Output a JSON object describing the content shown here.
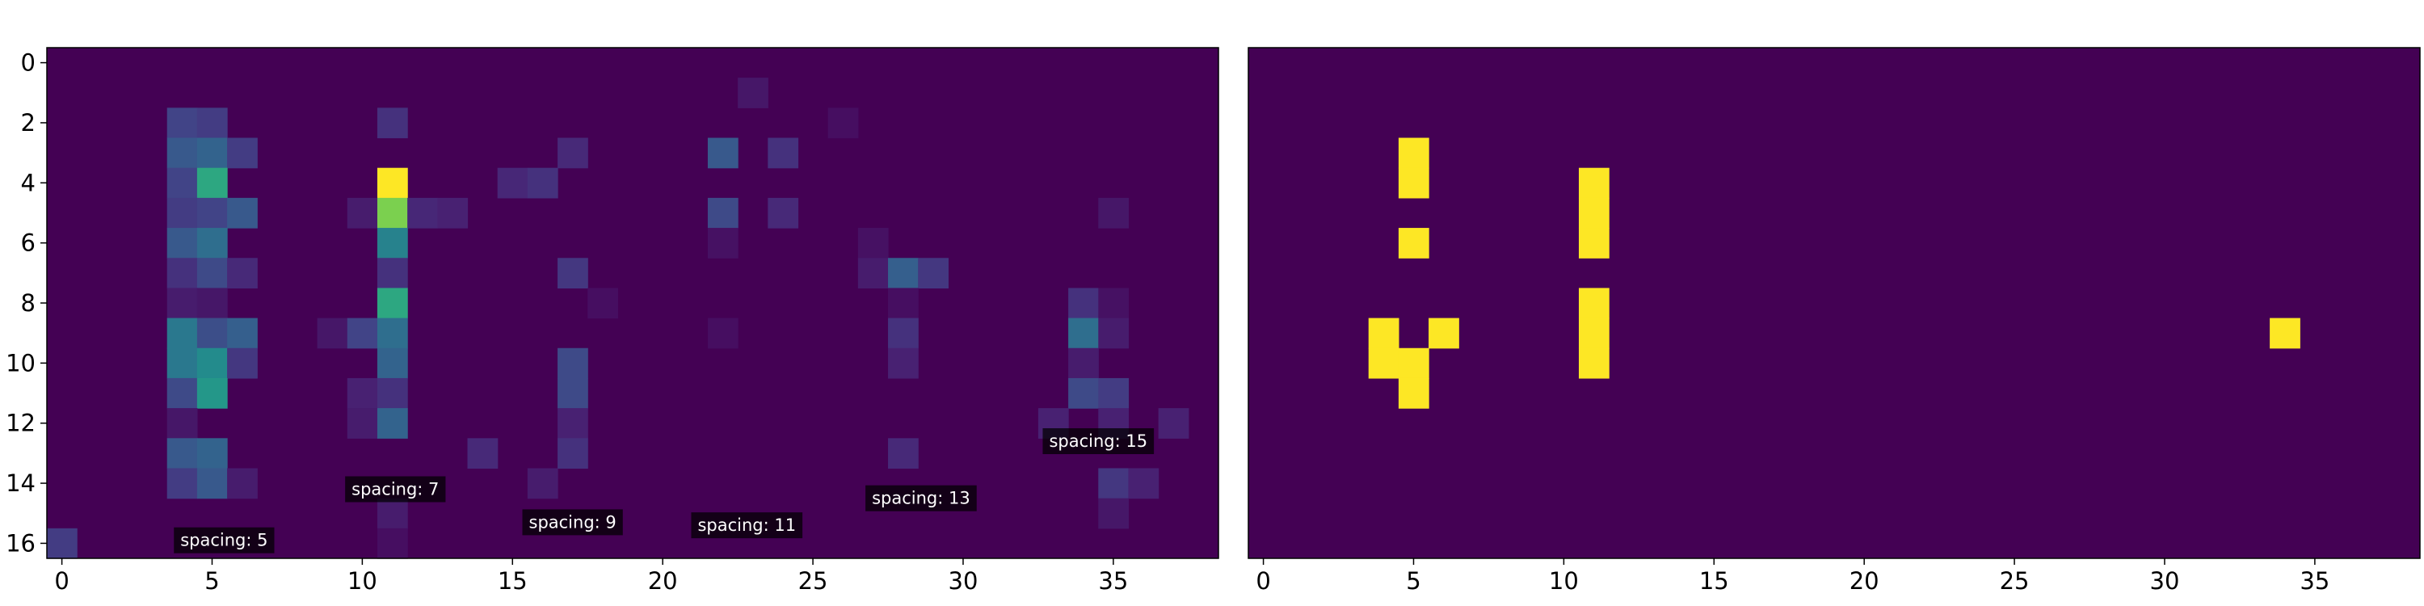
{
  "chart_data": [
    {
      "type": "heatmap",
      "panel": "left",
      "rows": 17,
      "cols": 39,
      "vmin": 0,
      "vmax": 1,
      "colormap": "viridis",
      "x_ticks": [
        0,
        5,
        10,
        15,
        20,
        25,
        30,
        35
      ],
      "y_ticks": [
        0,
        2,
        4,
        6,
        8,
        10,
        12,
        14,
        16
      ],
      "cells": [
        [
          1,
          23,
          0.08
        ],
        [
          2,
          4,
          0.25
        ],
        [
          2,
          5,
          0.22
        ],
        [
          2,
          11,
          0.18
        ],
        [
          2,
          26,
          0.05
        ],
        [
          3,
          4,
          0.35
        ],
        [
          3,
          5,
          0.4
        ],
        [
          3,
          6,
          0.22
        ],
        [
          3,
          17,
          0.15
        ],
        [
          3,
          22,
          0.35
        ],
        [
          3,
          24,
          0.18
        ],
        [
          4,
          4,
          0.25
        ],
        [
          4,
          5,
          0.7
        ],
        [
          4,
          11,
          1.0
        ],
        [
          4,
          15,
          0.14
        ],
        [
          4,
          16,
          0.18
        ],
        [
          5,
          4,
          0.22
        ],
        [
          5,
          5,
          0.25
        ],
        [
          5,
          6,
          0.35
        ],
        [
          5,
          10,
          0.1
        ],
        [
          5,
          11,
          0.85
        ],
        [
          5,
          12,
          0.14
        ],
        [
          5,
          13,
          0.12
        ],
        [
          5,
          22,
          0.28
        ],
        [
          5,
          24,
          0.15
        ],
        [
          5,
          35,
          0.08
        ],
        [
          6,
          4,
          0.35
        ],
        [
          6,
          5,
          0.45
        ],
        [
          6,
          11,
          0.55
        ],
        [
          6,
          22,
          0.06
        ],
        [
          6,
          27,
          0.06
        ],
        [
          7,
          4,
          0.18
        ],
        [
          7,
          5,
          0.28
        ],
        [
          7,
          6,
          0.15
        ],
        [
          7,
          11,
          0.18
        ],
        [
          7,
          17,
          0.2
        ],
        [
          7,
          27,
          0.1
        ],
        [
          7,
          28,
          0.38
        ],
        [
          7,
          29,
          0.2
        ],
        [
          8,
          4,
          0.1
        ],
        [
          8,
          5,
          0.08
        ],
        [
          8,
          11,
          0.7
        ],
        [
          8,
          18,
          0.05
        ],
        [
          8,
          28,
          0.05
        ],
        [
          8,
          34,
          0.18
        ],
        [
          8,
          35,
          0.06
        ],
        [
          9,
          4,
          0.5
        ],
        [
          9,
          5,
          0.3
        ],
        [
          9,
          6,
          0.38
        ],
        [
          9,
          9,
          0.08
        ],
        [
          9,
          10,
          0.25
        ],
        [
          9,
          11,
          0.45
        ],
        [
          9,
          22,
          0.05
        ],
        [
          9,
          28,
          0.18
        ],
        [
          9,
          34,
          0.45
        ],
        [
          9,
          35,
          0.1
        ],
        [
          10,
          4,
          0.5
        ],
        [
          10,
          5,
          0.6
        ],
        [
          10,
          6,
          0.2
        ],
        [
          10,
          11,
          0.4
        ],
        [
          10,
          17,
          0.28
        ],
        [
          10,
          28,
          0.12
        ],
        [
          10,
          34,
          0.1
        ],
        [
          11,
          4,
          0.28
        ],
        [
          11,
          5,
          0.65
        ],
        [
          11,
          10,
          0.12
        ],
        [
          11,
          11,
          0.18
        ],
        [
          11,
          17,
          0.28
        ],
        [
          11,
          34,
          0.28
        ],
        [
          11,
          35,
          0.22
        ],
        [
          12,
          4,
          0.08
        ],
        [
          12,
          10,
          0.1
        ],
        [
          12,
          11,
          0.4
        ],
        [
          12,
          17,
          0.12
        ],
        [
          12,
          33,
          0.12
        ],
        [
          12,
          35,
          0.12
        ],
        [
          12,
          37,
          0.12
        ],
        [
          13,
          4,
          0.35
        ],
        [
          13,
          5,
          0.4
        ],
        [
          13,
          14,
          0.15
        ],
        [
          13,
          17,
          0.18
        ],
        [
          13,
          28,
          0.15
        ],
        [
          14,
          4,
          0.22
        ],
        [
          14,
          5,
          0.35
        ],
        [
          14,
          6,
          0.1
        ],
        [
          14,
          16,
          0.1
        ],
        [
          14,
          35,
          0.2
        ],
        [
          14,
          36,
          0.12
        ],
        [
          15,
          11,
          0.1
        ],
        [
          15,
          35,
          0.08
        ],
        [
          16,
          0,
          0.22
        ],
        [
          16,
          11,
          0.05
        ]
      ],
      "annotations": [
        {
          "text": "spacing: 5",
          "x": 5.4,
          "y": 15.9
        },
        {
          "text": "spacing: 7",
          "x": 11.1,
          "y": 14.2
        },
        {
          "text": "spacing: 9",
          "x": 17.0,
          "y": 15.3
        },
        {
          "text": "spacing: 11",
          "x": 22.8,
          "y": 15.4
        },
        {
          "text": "spacing: 13",
          "x": 28.6,
          "y": 14.5
        },
        {
          "text": "spacing: 15",
          "x": 34.5,
          "y": 12.6
        }
      ]
    },
    {
      "type": "heatmap",
      "panel": "right",
      "rows": 17,
      "cols": 39,
      "vmin": 0,
      "vmax": 1,
      "colormap": "viridis",
      "x_ticks": [
        0,
        5,
        10,
        15,
        20,
        25,
        30,
        35
      ],
      "cells": [
        [
          3,
          5,
          1
        ],
        [
          4,
          5,
          1
        ],
        [
          6,
          5,
          1
        ],
        [
          4,
          11,
          1
        ],
        [
          5,
          11,
          1
        ],
        [
          6,
          11,
          1
        ],
        [
          8,
          11,
          1
        ],
        [
          9,
          11,
          1
        ],
        [
          10,
          11,
          1
        ],
        [
          9,
          4,
          1
        ],
        [
          9,
          6,
          1
        ],
        [
          10,
          4,
          1
        ],
        [
          10,
          5,
          1
        ],
        [
          11,
          5,
          1
        ],
        [
          9,
          34,
          1
        ]
      ]
    }
  ]
}
